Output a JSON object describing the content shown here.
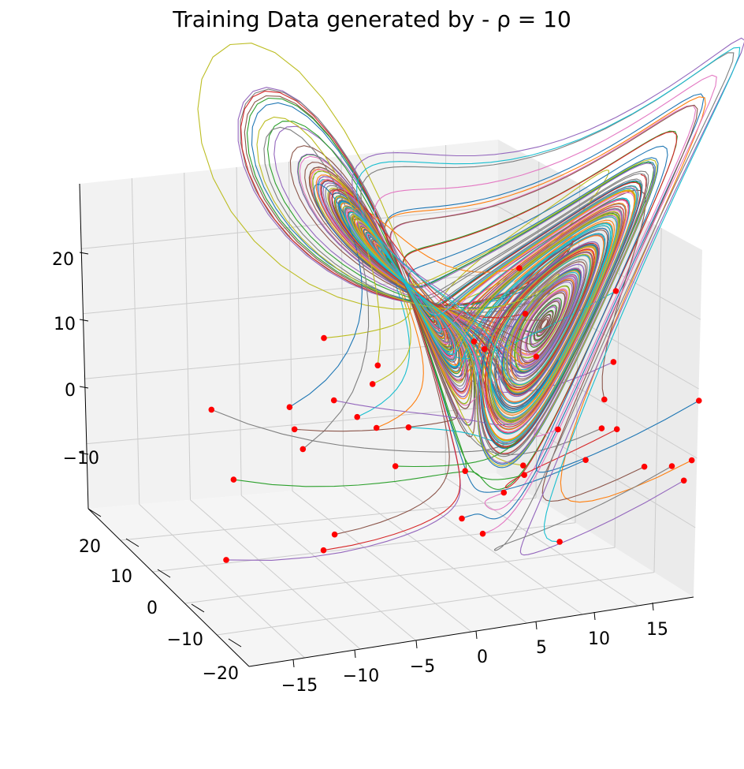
{
  "chart_data": {
    "type": "line",
    "projection": "3d",
    "title": "Training Data generated by - ρ = 10",
    "xlabel": "",
    "ylabel": "",
    "zlabel": "",
    "grid": true,
    "x_ticks": [
      "−15",
      "−10",
      "−5",
      "0",
      "5",
      "10",
      "15"
    ],
    "y_ticks": [
      "20",
      "10",
      "0",
      "−10",
      "−20"
    ],
    "z_ticks": [
      "20",
      "10",
      "0",
      "−10"
    ],
    "colors": [
      "#1f77b4",
      "#ff7f0e",
      "#2ca02c",
      "#d62728",
      "#9467bd",
      "#8c564b",
      "#e377c2",
      "#7f7f7f",
      "#bcbd22",
      "#17becf"
    ],
    "initial_point_color": "#ff0000",
    "series_count": 100
  }
}
